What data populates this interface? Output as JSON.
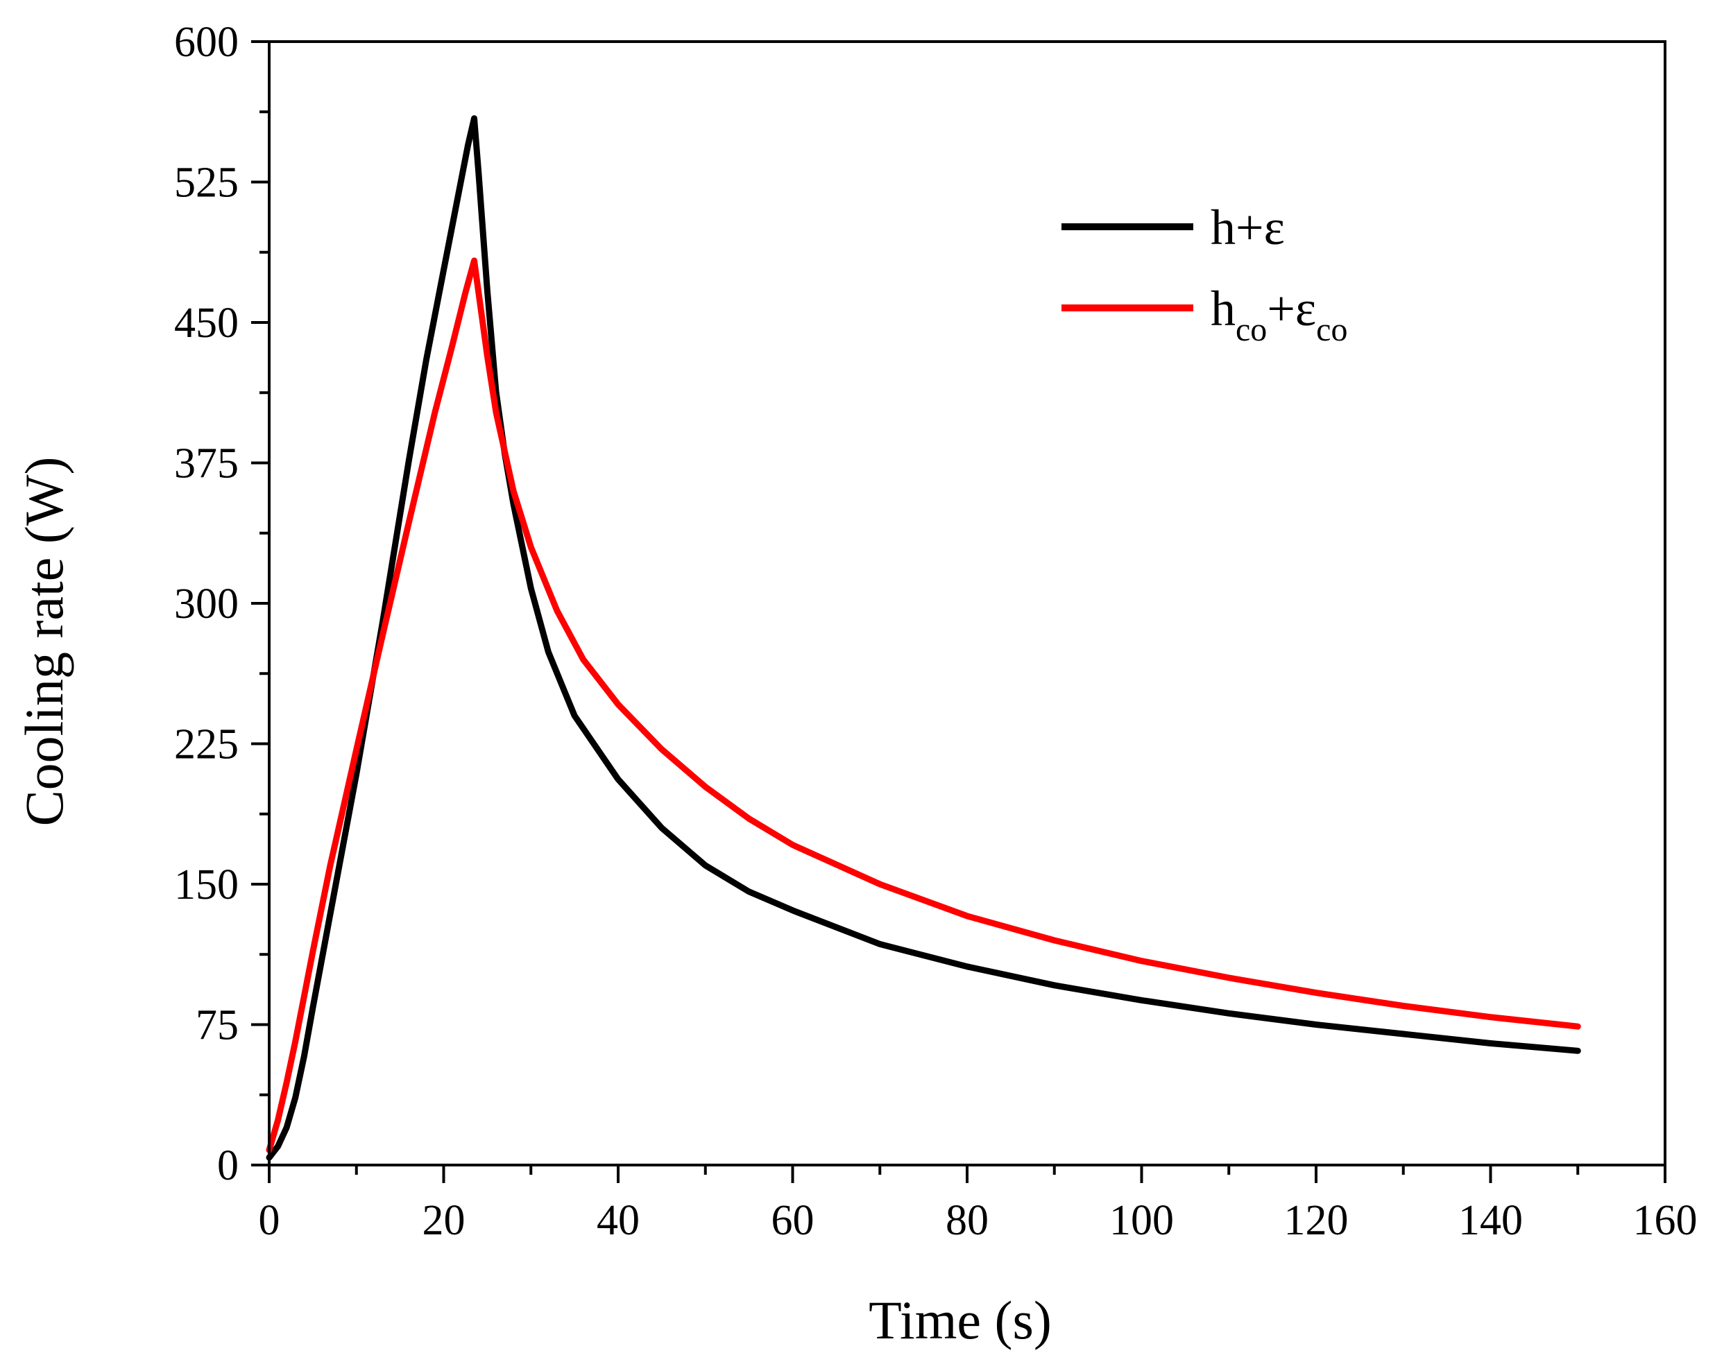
{
  "chart_data": {
    "type": "line",
    "title": "",
    "xlabel": "Time (s)",
    "ylabel": "Cooling rate (W)",
    "xlim": [
      0,
      160
    ],
    "ylim": [
      0,
      600
    ],
    "xticks": [
      0,
      20,
      40,
      60,
      80,
      100,
      120,
      140,
      160
    ],
    "yticks": [
      0,
      75,
      150,
      225,
      300,
      375,
      450,
      525,
      600
    ],
    "grid": false,
    "legend_position": "top-right",
    "series": [
      {
        "name": "h+ε",
        "legend_base": "h",
        "legend_sub1": "",
        "legend_mid": "+ε",
        "legend_sub2": "",
        "color": "#000000",
        "points": [
          [
            0,
            4
          ],
          [
            1,
            10
          ],
          [
            2,
            20
          ],
          [
            3,
            36
          ],
          [
            4,
            58
          ],
          [
            5,
            84
          ],
          [
            7,
            134
          ],
          [
            10,
            209
          ],
          [
            13,
            290
          ],
          [
            16,
            376
          ],
          [
            18,
            430
          ],
          [
            20,
            478
          ],
          [
            21,
            502
          ],
          [
            22,
            526
          ],
          [
            22.8,
            545
          ],
          [
            23.5,
            559
          ],
          [
            24,
            530
          ],
          [
            25,
            467
          ],
          [
            26,
            413
          ],
          [
            27,
            380
          ],
          [
            28,
            353
          ],
          [
            30,
            308
          ],
          [
            32,
            274
          ],
          [
            35,
            240
          ],
          [
            40,
            206
          ],
          [
            45,
            180
          ],
          [
            50,
            160
          ],
          [
            55,
            146
          ],
          [
            60,
            136
          ],
          [
            70,
            118
          ],
          [
            80,
            106
          ],
          [
            90,
            96
          ],
          [
            100,
            88
          ],
          [
            110,
            81
          ],
          [
            120,
            75
          ],
          [
            130,
            70
          ],
          [
            140,
            65
          ],
          [
            150,
            61
          ]
        ]
      },
      {
        "name": "hco+εco",
        "legend_base": "h",
        "legend_sub1": "co",
        "legend_mid": "+ε",
        "legend_sub2": "co",
        "color": "#ff0000",
        "points": [
          [
            0,
            8
          ],
          [
            1,
            24
          ],
          [
            2,
            44
          ],
          [
            3,
            66
          ],
          [
            5,
            114
          ],
          [
            7,
            160
          ],
          [
            10,
            222
          ],
          [
            13,
            283
          ],
          [
            16,
            343
          ],
          [
            19,
            402
          ],
          [
            21,
            438
          ],
          [
            22.5,
            466
          ],
          [
            23.5,
            483
          ],
          [
            24,
            466
          ],
          [
            25,
            432
          ],
          [
            26,
            402
          ],
          [
            28,
            360
          ],
          [
            30,
            330
          ],
          [
            33,
            296
          ],
          [
            36,
            270
          ],
          [
            40,
            246
          ],
          [
            45,
            222
          ],
          [
            50,
            202
          ],
          [
            55,
            185
          ],
          [
            60,
            171
          ],
          [
            70,
            150
          ],
          [
            80,
            133
          ],
          [
            90,
            120
          ],
          [
            100,
            109
          ],
          [
            110,
            100
          ],
          [
            120,
            92
          ],
          [
            130,
            85
          ],
          [
            140,
            79
          ],
          [
            150,
            74
          ]
        ]
      }
    ]
  }
}
